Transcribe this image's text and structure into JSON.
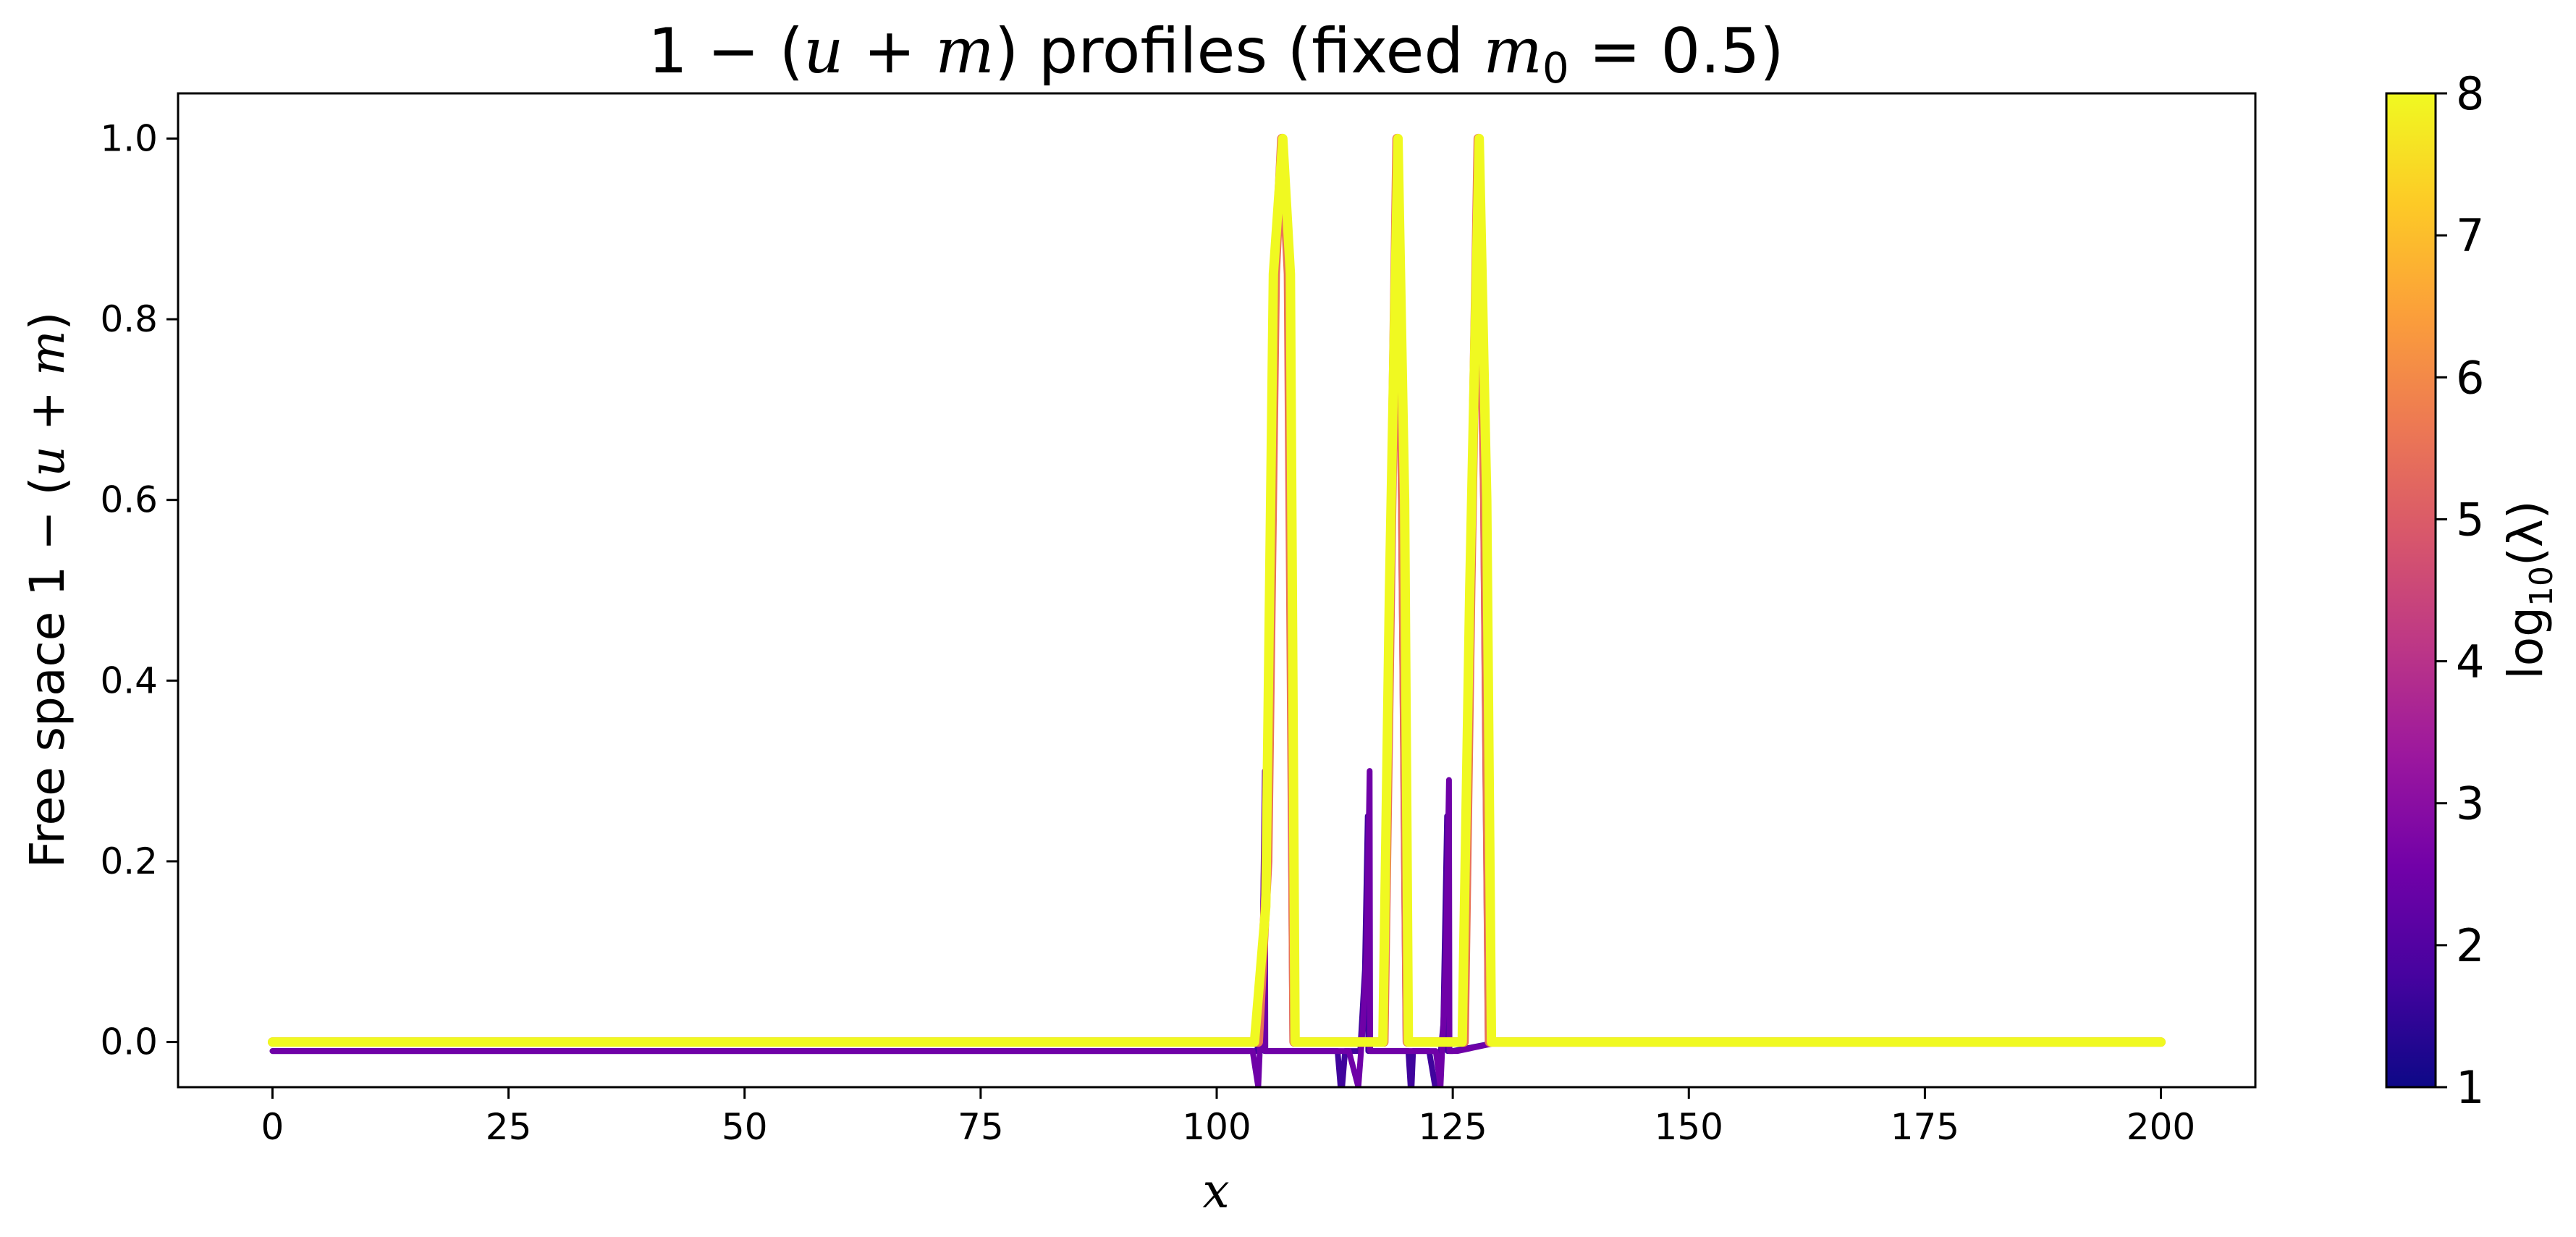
{
  "chart_data": {
    "type": "line",
    "title": "1 − (u + m) profiles  (fixed m₀ = 0.5)",
    "title_parts": {
      "a": "1 − (",
      "u": "u",
      "b": " + ",
      "m": "m",
      "c": ") profiles  (fixed ",
      "m0": "m",
      "sub0": "0",
      "d": " = 0.5)"
    },
    "xlabel": "x",
    "ylabel": "Free space 1 − (u + m)",
    "ylabel_parts": {
      "a": "Free space 1 − (",
      "u": "u",
      "b": " + ",
      "m": "m",
      "c": ")"
    },
    "xlim": [
      -10,
      210
    ],
    "ylim": [
      -0.05,
      1.05
    ],
    "x_ticks": [
      0,
      25,
      50,
      75,
      100,
      125,
      150,
      175,
      200
    ],
    "x_tick_labels": [
      "0",
      "25",
      "50",
      "75",
      "100",
      "125",
      "150",
      "175",
      "200"
    ],
    "y_ticks": [
      0.0,
      0.2,
      0.4,
      0.6,
      0.8,
      1.0
    ],
    "y_tick_labels": [
      "0.0",
      "0.2",
      "0.4",
      "0.6",
      "0.8",
      "1.0"
    ],
    "grid": false,
    "colorbar": {
      "label": "log10(λ)",
      "label_parts": {
        "log": "log",
        "sub": "10",
        "lam": "(λ)"
      },
      "range": [
        1,
        8
      ],
      "ticks": [
        1,
        2,
        3,
        4,
        5,
        6,
        7,
        8
      ],
      "tick_labels": [
        "1",
        "2",
        "3",
        "4",
        "5",
        "6",
        "7",
        "8"
      ],
      "colormap": "plasma",
      "colors": [
        "#0d0887",
        "#46039f",
        "#7201a8",
        "#9c179e",
        "#bd3786",
        "#d8576b",
        "#ed7953",
        "#fb9f3a",
        "#fdca26",
        "#f0f921"
      ]
    },
    "series": [
      {
        "log10_lambda": 1.7,
        "x": [
          0,
          103.5,
          104.3,
          104.8,
          105.0,
          105.05,
          112.8,
          113.2,
          113.6,
          115.2,
          115.7,
          116.0,
          116.05,
          120.3,
          120.6,
          120.8,
          122.5,
          123.3,
          124.0,
          124.4,
          124.45,
          125.0,
          130.0,
          200
        ],
        "y": [
          -0.01,
          -0.01,
          -0.01,
          0.05,
          0.2,
          -0.01,
          -0.01,
          -0.06,
          -0.01,
          -0.01,
          0.08,
          0.25,
          -0.01,
          -0.01,
          -0.06,
          -0.01,
          -0.01,
          -0.06,
          0.02,
          0.25,
          -0.01,
          -0.01,
          0.0,
          0.0
        ]
      },
      {
        "log10_lambda": 2.5,
        "x": [
          0,
          103.8,
          104.4,
          104.8,
          105.1,
          105.15,
          114.0,
          115.0,
          115.5,
          115.9,
          116.2,
          116.25,
          123.2,
          123.7,
          124.0,
          124.3,
          124.6,
          124.65,
          125.5,
          130.0,
          200
        ],
        "y": [
          -0.01,
          -0.01,
          -0.05,
          0.05,
          0.3,
          -0.01,
          -0.01,
          -0.05,
          0.02,
          0.1,
          0.3,
          -0.01,
          -0.01,
          -0.05,
          0.02,
          0.1,
          0.29,
          -0.01,
          -0.01,
          0.0,
          0.0
        ]
      },
      {
        "log10_lambda": 4.0,
        "x": [
          0,
          104.6,
          105.6,
          106.3,
          106.9,
          107.5,
          108.0,
          117.8,
          118.5,
          119.0,
          119.5,
          120.0,
          126.3,
          127.0,
          127.6,
          128.2,
          128.7,
          130.0,
          200
        ],
        "y": [
          0.0,
          0.0,
          0.3,
          0.85,
          1.0,
          0.85,
          0.0,
          0.0,
          0.5,
          1.0,
          0.6,
          0.0,
          0.0,
          0.5,
          1.0,
          0.6,
          0.0,
          0.0,
          0.0
        ]
      },
      {
        "log10_lambda": 5.5,
        "x": [
          0,
          104.4,
          105.4,
          106.2,
          106.9,
          107.6,
          108.2,
          117.7,
          118.4,
          119.1,
          119.7,
          120.2,
          126.2,
          126.9,
          127.7,
          128.4,
          128.9,
          130.0,
          200
        ],
        "y": [
          0.0,
          0.0,
          0.2,
          0.85,
          1.0,
          0.85,
          0.0,
          0.0,
          0.5,
          1.0,
          0.6,
          0.0,
          0.0,
          0.5,
          1.0,
          0.6,
          0.0,
          0.0,
          0.0
        ]
      },
      {
        "log10_lambda": 8.0,
        "x": [
          0,
          104.0,
          105.2,
          106.0,
          107.0,
          107.8,
          108.3,
          117.6,
          118.3,
          119.2,
          119.9,
          120.3,
          126.0,
          126.8,
          127.8,
          128.6,
          129.1,
          130.0,
          200
        ],
        "y": [
          0.0,
          0.0,
          0.15,
          0.85,
          1.0,
          0.85,
          0.0,
          0.0,
          0.5,
          1.0,
          0.6,
          0.0,
          0.0,
          0.5,
          1.0,
          0.6,
          0.0,
          0.0,
          0.0
        ]
      }
    ]
  }
}
